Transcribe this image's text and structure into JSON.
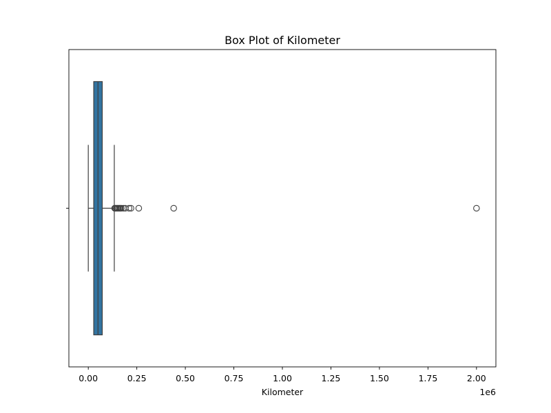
{
  "chart_data": {
    "type": "box",
    "orientation": "horizontal",
    "title": "Box Plot of Kilometer",
    "xlabel": "Kilometer",
    "ylabel": "",
    "x_offset_text": "1e6",
    "x_scale_factor": 1000000,
    "xlim": [
      -0.1,
      2.1
    ],
    "x_ticks": [
      0.0,
      0.25,
      0.5,
      0.75,
      1.0,
      1.25,
      1.5,
      1.75,
      2.0
    ],
    "x_tick_labels": [
      "0.00",
      "0.25",
      "0.50",
      "0.75",
      "1.00",
      "1.25",
      "1.50",
      "1.75",
      "2.00"
    ],
    "grid": false,
    "box": {
      "whisker_low": 0.0,
      "q1": 0.028,
      "median": 0.05,
      "q3": 0.072,
      "whisker_high": 0.134,
      "color": "#3274a1"
    },
    "outliers": [
      0.136,
      0.14,
      0.145,
      0.15,
      0.155,
      0.16,
      0.165,
      0.17,
      0.18,
      0.19,
      0.21,
      0.22,
      0.26,
      0.44,
      2.0
    ]
  }
}
